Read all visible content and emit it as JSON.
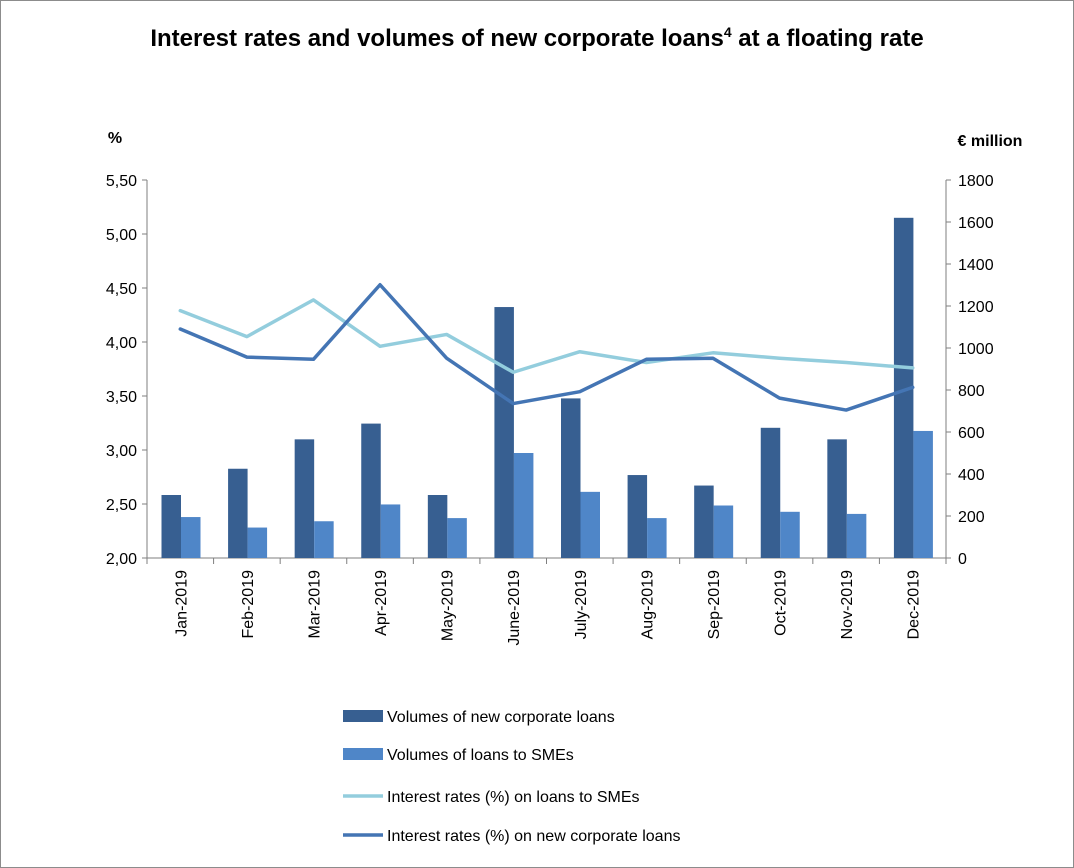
{
  "chart_data": {
    "type": "bar",
    "title": "Interest rates and volumes of new corporate loans",
    "title_superscript": "4",
    "title_tail": " at a floating rate",
    "y_left_label": "%",
    "y_right_label": "€ million",
    "y_left_lim": [
      2.0,
      5.5
    ],
    "y_left_ticks": [
      "2,00",
      "2,50",
      "3,00",
      "3,50",
      "4,00",
      "4,50",
      "5,00",
      "5,50"
    ],
    "y_right_lim": [
      0,
      1800
    ],
    "y_right_ticks": [
      "0",
      "200",
      "400",
      "600",
      "800",
      "1000",
      "1200",
      "1400",
      "1600",
      "1800"
    ],
    "grid": false,
    "legend_position": "bottom",
    "categories": [
      "Jan-2019",
      "Feb-2019",
      "Mar-2019",
      "Apr-2019",
      "May-2019",
      "June-2019",
      "July-2019",
      "Aug-2019",
      "Sep-2019",
      "Oct-2019",
      "Nov-2019",
      "Dec-2019"
    ],
    "series": [
      {
        "name": "Volumes of new corporate loans",
        "kind": "bar",
        "axis": "right",
        "color": "#375f91",
        "values": [
          300,
          425,
          565,
          640,
          300,
          1195,
          760,
          395,
          345,
          620,
          565,
          1620
        ]
      },
      {
        "name": "Volumes of loans to SMEs",
        "kind": "bar",
        "axis": "right",
        "color": "#4f86c8",
        "values": [
          195,
          145,
          175,
          255,
          190,
          500,
          315,
          190,
          250,
          220,
          210,
          605
        ]
      },
      {
        "name": "Interest rates (%) on loans to SMEs",
        "kind": "line",
        "axis": "left",
        "color": "#93cddd",
        "values": [
          4.29,
          4.05,
          4.39,
          3.96,
          4.07,
          3.72,
          3.91,
          3.81,
          3.9,
          3.85,
          3.81,
          3.76
        ]
      },
      {
        "name": "Interest rates (%) on new corporate loans",
        "kind": "line",
        "axis": "left",
        "color": "#4475b4",
        "values": [
          4.12,
          3.86,
          3.84,
          4.53,
          3.85,
          3.43,
          3.54,
          3.84,
          3.85,
          3.48,
          3.37,
          3.58
        ]
      }
    ]
  }
}
